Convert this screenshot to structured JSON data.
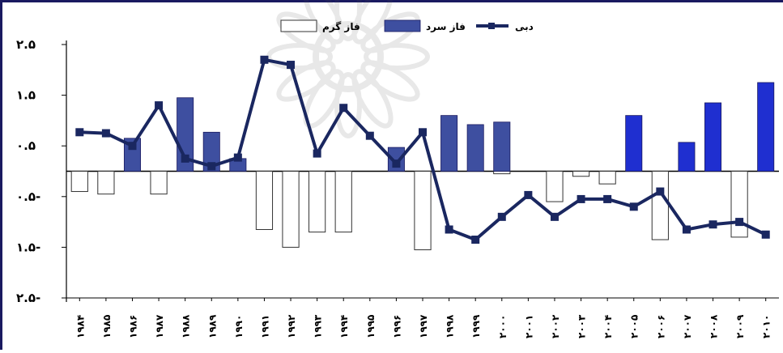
{
  "chart_data": {
    "type": "bar",
    "title": "",
    "xlabel": "",
    "ylabel": "",
    "categories": [
      "۱۹۸۴",
      "۱۹۸۵",
      "۱۹۸۶",
      "۱۹۸۷",
      "۱۹۸۸",
      "۱۹۸۹",
      "۱۹۹۰",
      "۱۹۹۱",
      "۱۹۹۲",
      "۱۹۹۳",
      "۱۹۹۴",
      "۱۹۹۵",
      "۱۹۹۶",
      "۱۹۹۷",
      "۱۹۹۸",
      "۱۹۹۹",
      "۲۰۰۰",
      "۲۰۰۱",
      "۲۰۰۲",
      "۲۰۰۳",
      "۲۰۰۴",
      "۲۰۰۵",
      "۲۰۰۶",
      "۲۰۰۷",
      "۲۰۰۸",
      "۲۰۰۹",
      "۲۰۱۰"
    ],
    "y_tick_labels": [
      "۲.۵",
      "۱.۵",
      "۰.۵",
      "۰.۵-",
      "۱.۵-",
      "۲.۵-"
    ],
    "y_tick_values": [
      2.5,
      1.5,
      0.5,
      -0.5,
      -1.5,
      -2.5
    ],
    "ylim": [
      -2.5,
      2.5
    ],
    "grid": false,
    "legend_position": "top-center",
    "series": [
      {
        "name": "فاز گرم",
        "kind": "bar",
        "style": "hollow",
        "values": [
          -0.4,
          -0.45,
          null,
          -0.45,
          null,
          null,
          null,
          -1.15,
          -1.5,
          -1.2,
          -1.2,
          null,
          null,
          -1.55,
          null,
          null,
          -0.05,
          null,
          -0.6,
          -0.1,
          -0.25,
          null,
          -1.35,
          null,
          null,
          -1.3,
          null
        ]
      },
      {
        "name": "فاز سرد",
        "kind": "bar",
        "style": "filled",
        "values": [
          null,
          null,
          0.65,
          null,
          1.45,
          0.77,
          0.25,
          null,
          null,
          null,
          null,
          null,
          0.47,
          null,
          1.1,
          0.92,
          0.97,
          null,
          null,
          null,
          null,
          1.1,
          null,
          0.57,
          1.35,
          null,
          1.75
        ]
      },
      {
        "name": "دبی",
        "kind": "line",
        "values": [
          0.77,
          0.75,
          0.5,
          1.3,
          0.25,
          0.1,
          0.27,
          2.2,
          2.1,
          0.35,
          1.25,
          0.7,
          0.15,
          0.77,
          -1.15,
          -1.35,
          -0.9,
          -0.47,
          -0.9,
          -0.55,
          -0.55,
          -0.7,
          -0.4,
          -1.15,
          -1.05,
          -1.0,
          -1.25
        ]
      }
    ],
    "colors": {
      "warm_bar_fill": "#ffffff",
      "warm_bar_stroke": "#333333",
      "cold_bar_early": "#3e4fa0",
      "cold_bar_late": "#1f2fd0",
      "line": "#1a2760",
      "marker": "#1a2760",
      "axis": "#000000",
      "frame": "#1a1a60"
    }
  }
}
